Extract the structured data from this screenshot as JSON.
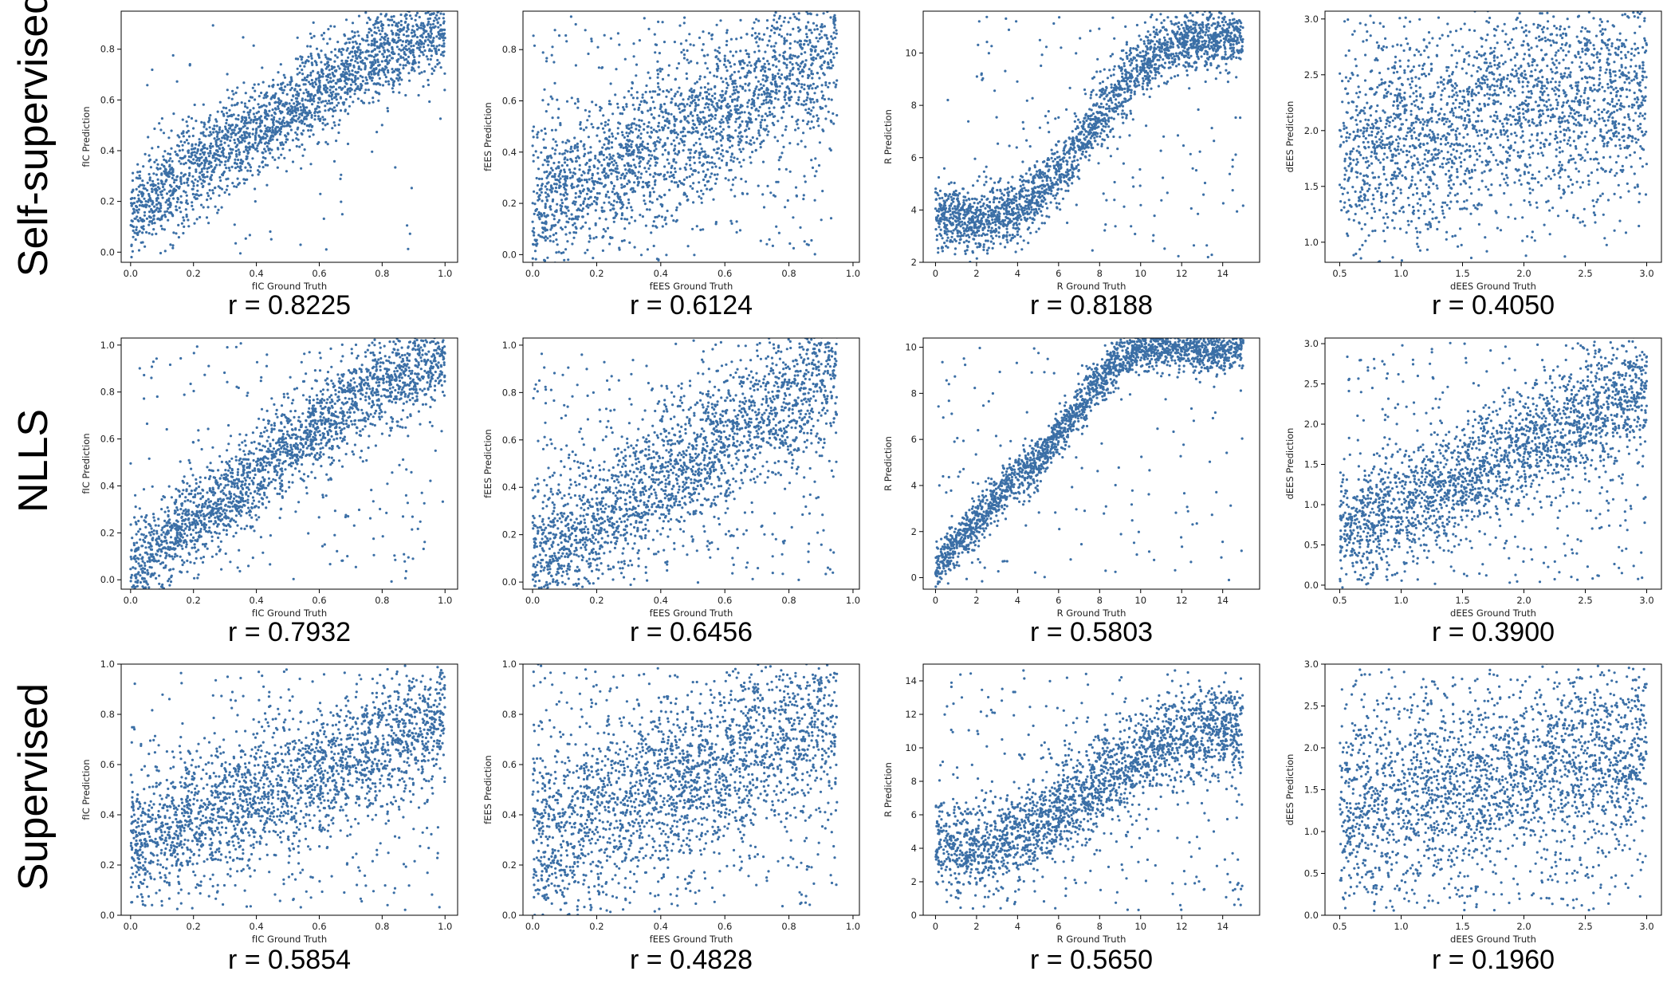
{
  "row_labels": [
    "Self-supervised",
    "NLLS",
    "Supervised"
  ],
  "colors": {
    "points": "#3b6fa6",
    "frame": "#000000",
    "background": "#ffffff"
  },
  "chart_data": [
    {
      "type": "scatter",
      "row": 0,
      "col": 0,
      "xlabel": "fIC Ground Truth",
      "ylabel": "fIC Prediction",
      "xlim": [
        -0.03,
        1.04
      ],
      "ylim": [
        -0.04,
        0.95
      ],
      "xticks": [
        0.0,
        0.2,
        0.4,
        0.6,
        0.8,
        1.0
      ],
      "yticks": [
        0.0,
        0.2,
        0.4,
        0.6,
        0.8
      ],
      "xfmt": 1,
      "yfmt": 1,
      "annotation": "r = 0.8225",
      "series": [
        {
          "trend": {
            "x": [
              0.0,
              0.2,
              0.4,
              0.6,
              0.8,
              1.0
            ],
            "y": [
              0.15,
              0.33,
              0.48,
              0.64,
              0.79,
              0.9
            ]
          },
          "spread": 0.09,
          "outlier_fraction": 0.04
        }
      ]
    },
    {
      "type": "scatter",
      "row": 0,
      "col": 1,
      "xlabel": "fEES Ground Truth",
      "ylabel": "fEES Prediction",
      "xlim": [
        -0.03,
        1.02
      ],
      "ylim": [
        -0.03,
        0.95
      ],
      "xticks": [
        0.0,
        0.2,
        0.4,
        0.6,
        0.8,
        1.0
      ],
      "yticks": [
        0.0,
        0.2,
        0.4,
        0.6,
        0.8
      ],
      "xfmt": 1,
      "yfmt": 1,
      "annotation": "r = 0.6124",
      "series": [
        {
          "trend": {
            "x": [
              0.0,
              0.2,
              0.4,
              0.6,
              0.8,
              0.95
            ],
            "y": [
              0.2,
              0.3,
              0.42,
              0.55,
              0.7,
              0.82
            ]
          },
          "spread": 0.15,
          "outlier_fraction": 0.12
        }
      ]
    },
    {
      "type": "scatter",
      "row": 0,
      "col": 2,
      "xlabel": "R Ground Truth",
      "ylabel": "R Prediction",
      "xlim": [
        -0.6,
        15.8
      ],
      "ylim": [
        2.0,
        11.6
      ],
      "xticks": [
        0,
        2,
        4,
        6,
        8,
        10,
        12,
        14
      ],
      "yticks": [
        2,
        4,
        6,
        8,
        10
      ],
      "xfmt": 0,
      "yfmt": 0,
      "annotation": "r = 0.8188",
      "series": [
        {
          "trend": {
            "x": [
              0,
              2,
              4,
              6,
              8,
              10,
              12,
              15
            ],
            "y": [
              3.7,
              3.6,
              4.0,
              5.4,
              7.6,
              9.6,
              10.4,
              10.6
            ]
          },
          "spread": 0.6,
          "outlier_fraction": 0.08
        }
      ]
    },
    {
      "type": "scatter",
      "row": 0,
      "col": 3,
      "xlabel": "dEES Ground Truth",
      "ylabel": "dEES Prediction",
      "xlim": [
        0.38,
        3.12
      ],
      "ylim": [
        0.82,
        3.07
      ],
      "xticks": [
        0.5,
        1.0,
        1.5,
        2.0,
        2.5,
        3.0
      ],
      "yticks": [
        1.0,
        1.5,
        2.0,
        2.5,
        3.0
      ],
      "xfmt": 1,
      "yfmt": 1,
      "annotation": "r = 0.4050",
      "series": [
        {
          "trend": {
            "x": [
              0.5,
              1.0,
              1.5,
              2.0,
              2.5,
              3.0
            ],
            "y": [
              1.75,
              1.9,
              2.05,
              2.25,
              2.35,
              2.4
            ]
          },
          "spread": 0.5,
          "outlier_fraction": 0.05
        }
      ]
    },
    {
      "type": "scatter",
      "row": 1,
      "col": 0,
      "xlabel": "fIC Ground Truth",
      "ylabel": "fIC Prediction",
      "xlim": [
        -0.03,
        1.04
      ],
      "ylim": [
        -0.04,
        1.03
      ],
      "xticks": [
        0.0,
        0.2,
        0.4,
        0.6,
        0.8,
        1.0
      ],
      "yticks": [
        0.0,
        0.2,
        0.4,
        0.6,
        0.8,
        1.0
      ],
      "xfmt": 1,
      "yfmt": 1,
      "annotation": "r = 0.7932",
      "series": [
        {
          "trend": {
            "x": [
              0.0,
              0.2,
              0.4,
              0.6,
              0.8,
              1.0
            ],
            "y": [
              0.05,
              0.25,
              0.45,
              0.66,
              0.84,
              0.96
            ]
          },
          "spread": 0.1,
          "outlier_fraction": 0.1
        }
      ]
    },
    {
      "type": "scatter",
      "row": 1,
      "col": 1,
      "xlabel": "fEES Ground Truth",
      "ylabel": "fEES Prediction",
      "xlim": [
        -0.03,
        1.02
      ],
      "ylim": [
        -0.03,
        1.03
      ],
      "xticks": [
        0.0,
        0.2,
        0.4,
        0.6,
        0.8,
        1.0
      ],
      "yticks": [
        0.0,
        0.2,
        0.4,
        0.6,
        0.8,
        1.0
      ],
      "xfmt": 1,
      "yfmt": 1,
      "annotation": "r = 0.6456",
      "series": [
        {
          "trend": {
            "x": [
              0.0,
              0.2,
              0.4,
              0.6,
              0.8,
              0.95
            ],
            "y": [
              0.1,
              0.25,
              0.42,
              0.6,
              0.78,
              0.9
            ]
          },
          "spread": 0.15,
          "outlier_fraction": 0.15
        }
      ]
    },
    {
      "type": "scatter",
      "row": 1,
      "col": 2,
      "xlabel": "R Ground Truth",
      "ylabel": "R Prediction",
      "xlim": [
        -0.6,
        15.8
      ],
      "ylim": [
        -0.5,
        10.4
      ],
      "xticks": [
        0,
        2,
        4,
        6,
        8,
        10,
        12,
        14
      ],
      "yticks": [
        0,
        2,
        4,
        6,
        8,
        10
      ],
      "xfmt": 0,
      "yfmt": 0,
      "annotation": "r = 0.5803",
      "series": [
        {
          "trend": {
            "x": [
              0,
              4,
              5,
              6,
              7,
              8,
              9,
              10,
              15
            ],
            "y": [
              0.4,
              4.5,
              5.0,
              6.2,
              7.4,
              8.6,
              9.6,
              10.0,
              10.0
            ]
          },
          "spread": 0.5,
          "outlier_fraction": 0.06
        }
      ]
    },
    {
      "type": "scatter",
      "row": 1,
      "col": 3,
      "xlabel": "dEES Ground Truth",
      "ylabel": "dEES Prediction",
      "xlim": [
        0.38,
        3.12
      ],
      "ylim": [
        -0.05,
        3.07
      ],
      "xticks": [
        0.5,
        1.0,
        1.5,
        2.0,
        2.5,
        3.0
      ],
      "yticks": [
        0.0,
        0.5,
        1.0,
        1.5,
        2.0,
        2.5,
        3.0
      ],
      "xfmt": 1,
      "yfmt": 1,
      "annotation": "r = 0.3900",
      "series": [
        {
          "trend": {
            "x": [
              0.5,
              1.0,
              1.5,
              2.0,
              2.5,
              3.0
            ],
            "y": [
              0.7,
              0.95,
              1.3,
              1.7,
              2.1,
              2.4
            ]
          },
          "spread": 0.35,
          "outlier_fraction": 0.15
        }
      ]
    },
    {
      "type": "scatter",
      "row": 2,
      "col": 0,
      "xlabel": "fIC Ground Truth",
      "ylabel": "fIC Prediction",
      "xlim": [
        -0.03,
        1.04
      ],
      "ylim": [
        0.0,
        1.0
      ],
      "xticks": [
        0.0,
        0.2,
        0.4,
        0.6,
        0.8,
        1.0
      ],
      "yticks": [
        0.0,
        0.2,
        0.4,
        0.6,
        0.8,
        1.0
      ],
      "xfmt": 1,
      "yfmt": 1,
      "annotation": "r = 0.5854",
      "series": [
        {
          "trend": {
            "x": [
              0.0,
              0.2,
              0.4,
              0.6,
              0.8,
              1.0
            ],
            "y": [
              0.28,
              0.38,
              0.47,
              0.57,
              0.68,
              0.8
            ]
          },
          "spread": 0.13,
          "outlier_fraction": 0.12
        }
      ]
    },
    {
      "type": "scatter",
      "row": 2,
      "col": 1,
      "xlabel": "fEES Ground Truth",
      "ylabel": "fEES Prediction",
      "xlim": [
        -0.03,
        1.02
      ],
      "ylim": [
        0.0,
        1.0
      ],
      "xticks": [
        0.0,
        0.2,
        0.4,
        0.6,
        0.8,
        1.0
      ],
      "yticks": [
        0.0,
        0.2,
        0.4,
        0.6,
        0.8,
        1.0
      ],
      "xfmt": 1,
      "yfmt": 1,
      "annotation": "r = 0.4828",
      "series": [
        {
          "trend": {
            "x": [
              0.0,
              0.2,
              0.4,
              0.6,
              0.8,
              0.95
            ],
            "y": [
              0.3,
              0.4,
              0.5,
              0.6,
              0.7,
              0.78
            ]
          },
          "spread": 0.18,
          "outlier_fraction": 0.15
        }
      ]
    },
    {
      "type": "scatter",
      "row": 2,
      "col": 2,
      "xlabel": "R Ground Truth",
      "ylabel": "R Prediction",
      "xlim": [
        -0.6,
        15.8
      ],
      "ylim": [
        0,
        15
      ],
      "xticks": [
        0,
        2,
        4,
        6,
        8,
        10,
        12,
        14
      ],
      "yticks": [
        0,
        2,
        4,
        6,
        8,
        10,
        12,
        14
      ],
      "xfmt": 0,
      "yfmt": 0,
      "annotation": "r = 0.5650",
      "series": [
        {
          "trend": {
            "x": [
              0,
              2,
              4,
              6,
              8,
              10,
              12,
              15
            ],
            "y": [
              4.0,
              4.0,
              4.6,
              6.2,
              7.8,
              9.6,
              10.6,
              11.2
            ]
          },
          "spread": 1.3,
          "outlier_fraction": 0.12
        }
      ]
    },
    {
      "type": "scatter",
      "row": 2,
      "col": 3,
      "xlabel": "dEES Ground Truth",
      "ylabel": "dEES Prediction",
      "xlim": [
        0.38,
        3.12
      ],
      "ylim": [
        0.0,
        3.0
      ],
      "xticks": [
        0.5,
        1.0,
        1.5,
        2.0,
        2.5,
        3.0
      ],
      "yticks": [
        0.0,
        0.5,
        1.0,
        1.5,
        2.0,
        2.5,
        3.0
      ],
      "xfmt": 1,
      "yfmt": 1,
      "annotation": "r = 0.1960",
      "series": [
        {
          "trend": {
            "x": [
              0.5,
              1.0,
              1.5,
              2.0,
              2.5,
              3.0
            ],
            "y": [
              1.25,
              1.35,
              1.5,
              1.7,
              1.9,
              2.0
            ]
          },
          "spread": 0.55,
          "outlier_fraction": 0.2
        }
      ]
    }
  ]
}
